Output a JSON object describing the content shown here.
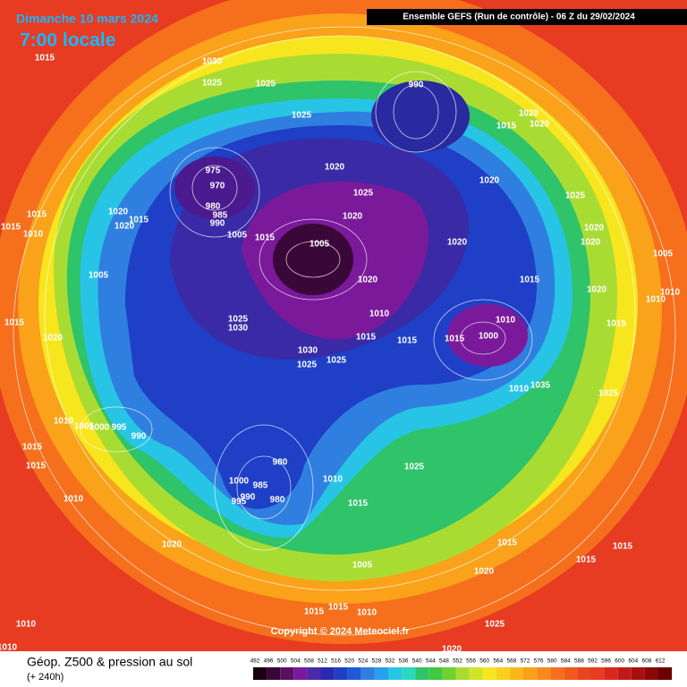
{
  "header": {
    "date": "Dimanche 10 mars 2024",
    "time": "7:00 locale",
    "model": "Ensemble GEFS  (Run de contrôle)  -  06 Z du 29/02/2024"
  },
  "copyright": "Copyright © 2024 Meteociel.fr",
  "legend": {
    "title": "Géop. Z500 & pression au sol",
    "lead": "(+ 240h)",
    "scale": [
      492,
      496,
      500,
      504,
      508,
      512,
      516,
      520,
      524,
      528,
      532,
      536,
      540,
      544,
      548,
      552,
      556,
      560,
      564,
      568,
      572,
      576,
      580,
      584,
      588,
      592,
      596,
      600,
      604,
      608,
      612
    ]
  },
  "isobar_labels": [
    1015,
    1030,
    1025,
    1025,
    1025,
    990,
    1015,
    1020,
    1020,
    975,
    970,
    980,
    985,
    990,
    1005,
    1015,
    1020,
    1025,
    1020,
    1005,
    1020,
    1025,
    1020,
    1020,
    1020,
    1015,
    1015,
    1010,
    1020,
    1020,
    1015,
    1005,
    1005,
    1015,
    1020,
    1010,
    1010,
    1020,
    1010,
    1015,
    1020,
    1025,
    1030,
    1015,
    1015,
    1015,
    1000,
    1010,
    1015,
    1030,
    1025,
    1025,
    1035,
    1010,
    1025,
    1010,
    1005,
    1000,
    995,
    990,
    1015,
    1015,
    980,
    1000,
    985,
    990,
    980,
    995,
    1010,
    1025,
    1015,
    1015,
    1015,
    1010,
    1015,
    1020,
    1005,
    1020,
    1015,
    1015,
    1010,
    1025,
    1010,
    1020,
    1010
  ]
}
